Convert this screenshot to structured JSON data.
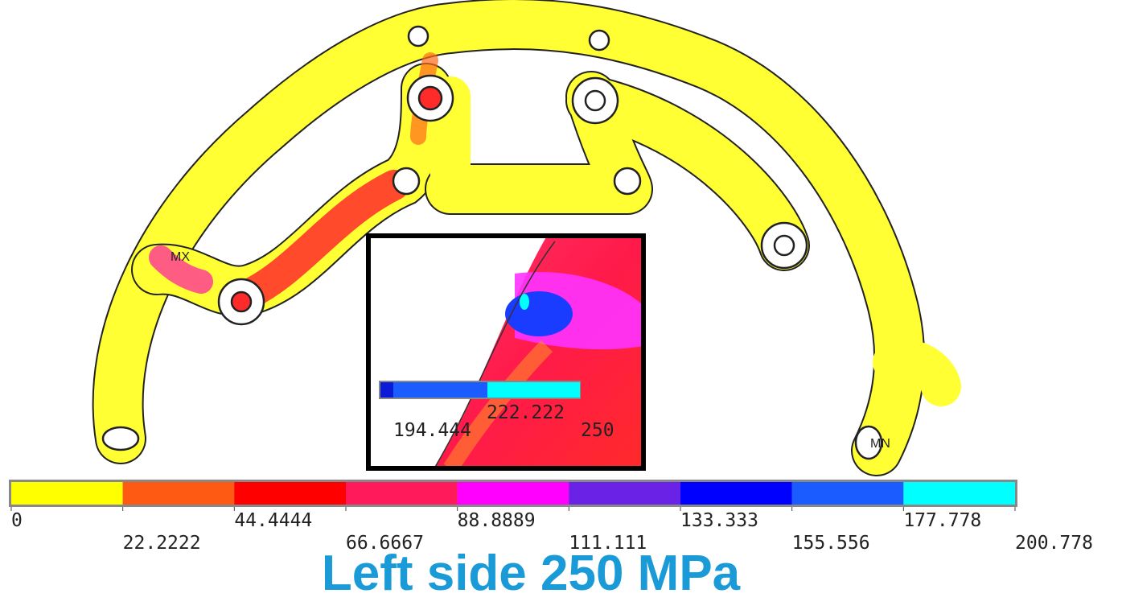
{
  "caption": "Left side 250 MPa",
  "part_labels": {
    "max": "MX",
    "min": "MN"
  },
  "legend": {
    "colors": [
      "#ffff00",
      "#ff5a14",
      "#ff0000",
      "#ff1a5c",
      "#ff00ff",
      "#6a22e6",
      "#0000ff",
      "#1a5cff",
      "#00ffff"
    ],
    "labels": [
      "0",
      "22.2222",
      "44.4444",
      "66.6667",
      "88.8889",
      "111.111",
      "133.333",
      "155.556",
      "177.778",
      "200.778"
    ]
  },
  "inset": {
    "colors": [
      "#0a1ad6",
      "#1a5cff",
      "#00ffff"
    ],
    "labels": [
      "222.222",
      "194.444",
      "250"
    ]
  }
}
